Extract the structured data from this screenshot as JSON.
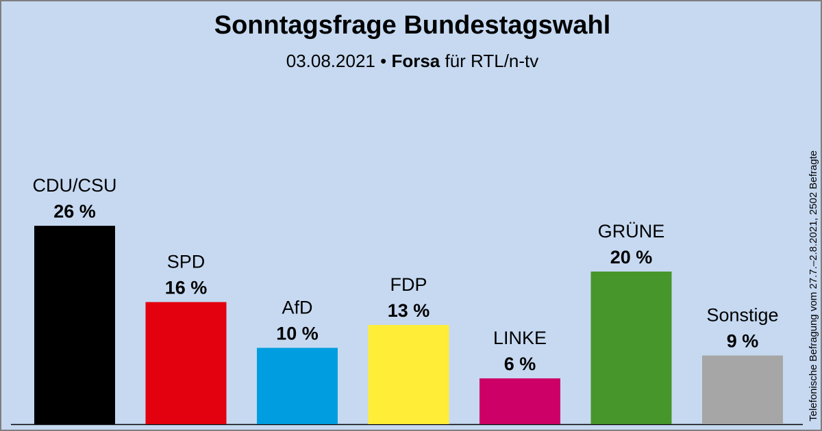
{
  "header": {
    "title": "Sonntagsfrage Bundestagswahl",
    "date": "03.08.2021",
    "separator": " • ",
    "institute": "Forsa",
    "client": " für RTL/n-tv"
  },
  "side_note": "Telefonische Befragung vom 27.7.–2.8.2021, 2502 Befragte",
  "chart_data": {
    "type": "bar",
    "categories": [
      "CDU/CSU",
      "SPD",
      "AfD",
      "FDP",
      "LINKE",
      "GRÜNE",
      "Sonstige"
    ],
    "values": [
      26,
      16,
      10,
      13,
      6,
      20,
      9
    ],
    "value_labels": [
      "26 %",
      "16 %",
      "10 %",
      "13 %",
      "6 %",
      "20 %",
      "9 %"
    ],
    "colors": [
      "#000000",
      "#e3000f",
      "#009ee0",
      "#ffed38",
      "#cc0066",
      "#46962b",
      "#a6a6a6"
    ],
    "unit": "%",
    "title": "Sonntagsfrage Bundestagswahl",
    "xlabel": "",
    "ylabel": "",
    "ylim": [
      0,
      26
    ],
    "grid": false,
    "legend": "none"
  }
}
